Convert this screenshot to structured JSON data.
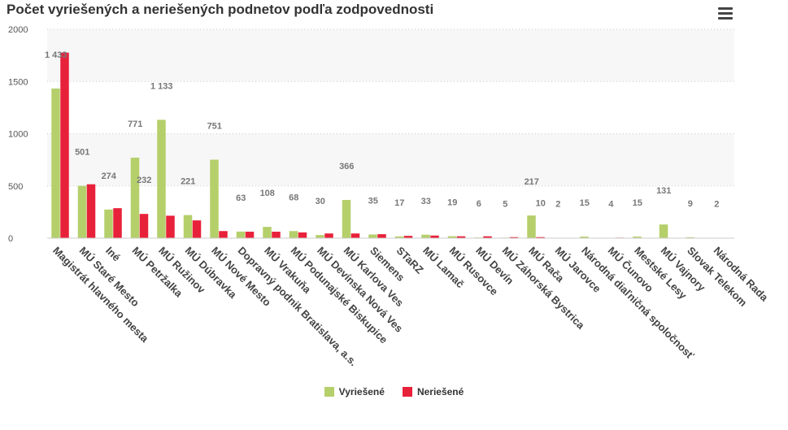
{
  "chart_data": {
    "type": "bar",
    "title": "Počet vyriešených a neriešených podnetov podľa zodpovednosti",
    "ylim": [
      0,
      2000
    ],
    "yticks": [
      0,
      500,
      1000,
      1500,
      2000
    ],
    "ytick_labels": [
      "0",
      "500",
      "1000",
      "1500",
      "2000"
    ],
    "grid": true,
    "legend_position": "bottom-center",
    "categories": [
      "Magistrát hlavného mesta",
      "MÚ Staré Mesto",
      "Iné",
      "MÚ Petržalka",
      "MÚ Ružinov",
      "MÚ Dúbravka",
      "MÚ Nové Mesto",
      "Dopravný podnik Bratislava, a.s.",
      "MÚ Vrakuňa",
      "MÚ Podunajské Biskupice",
      "MÚ Devínska Nová Ves",
      "MÚ Karlova Ves",
      "Siemens",
      "STaRZ",
      "MÚ Lamač",
      "MÚ Rusovce",
      "MÚ Devín",
      "MÚ Záhorská Bystrica",
      "MÚ Rača",
      "MÚ Jarovce",
      "Národná diaľničná spoločnosť",
      "MÚ Čunovo",
      "Mestské Lesy",
      "MÚ Vajnory",
      "Slovak Telekom",
      "Národná Rada"
    ],
    "series": [
      {
        "name": "Vyriešené",
        "color": "#b5cf6b",
        "values": [
          1433,
          501,
          274,
          771,
          1133,
          221,
          751,
          63,
          108,
          68,
          30,
          366,
          35,
          17,
          33,
          19,
          6,
          5,
          217,
          2,
          15,
          4,
          15,
          131,
          9,
          2
        ],
        "labels": [
          "1 433",
          "501",
          "274",
          "771",
          "1 133",
          "221",
          "751",
          "63",
          "108",
          "68",
          "30",
          "366",
          "35",
          "17",
          "33",
          "19",
          "6",
          "5",
          "217",
          "2",
          "15",
          "4",
          "15",
          "131",
          "9",
          "2"
        ]
      },
      {
        "name": "Neriešené",
        "color": "#e8213a",
        "values": [
          1776,
          516,
          287,
          232,
          215,
          170,
          68,
          62,
          62,
          55,
          45,
          45,
          38,
          22,
          25,
          18,
          18,
          10,
          10,
          4,
          3,
          5,
          2,
          2,
          0,
          0
        ],
        "labels": [
          "",
          "",
          "",
          "232",
          "",
          "",
          "",
          "",
          "",
          "",
          "",
          "",
          "",
          "",
          "",
          "",
          "",
          "",
          "10",
          "",
          "",
          "",
          "",
          "",
          "",
          ""
        ]
      }
    ]
  }
}
